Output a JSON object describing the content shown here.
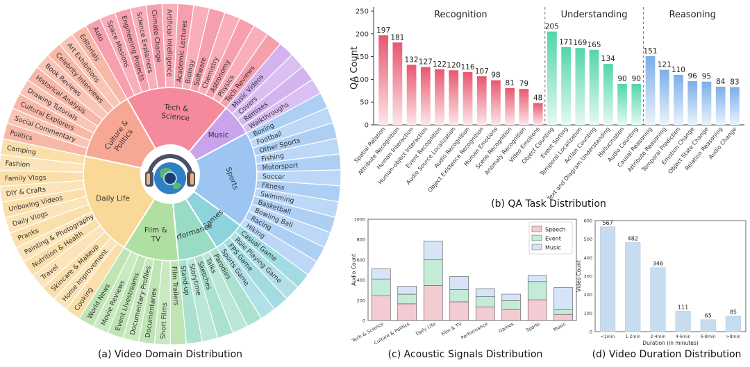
{
  "captions": {
    "a": "(a) Video Domain Distribution",
    "b": "(b) QA Task Distribution",
    "c": "(c) Acoustic Signals Distribution",
    "d": "(d) Video Duration Distribution"
  },
  "chart_data": [
    {
      "type": "sunburst",
      "title": "(a) Video Domain Distribution",
      "categories": [
        {
          "name": "Culture & Politics",
          "color": "#f7a894",
          "leaves": [
            "Politics",
            "Social Commentary",
            "Cultural Explorers",
            "Drawing Tutorials",
            "Historical Analysis",
            "Book Reviews",
            "Celebrity Interviews",
            "Art Exhibitions",
            "Editorials"
          ]
        },
        {
          "name": "Tech & Science",
          "color": "#f48a9b",
          "leaves": [
            "Auto",
            "Space Missions",
            "Engineering Projects",
            "Science Explainers",
            "Climate Change",
            "Artificial Intelligence",
            "Academic Lectures",
            "Biology",
            "Software",
            "Chemistry",
            "Astronomy",
            "Physics",
            "Tech Reviews"
          ]
        },
        {
          "name": "Music",
          "color": "#c9a3ec",
          "leaves": [
            "Music Videos",
            "Covers",
            "Remixes",
            "Walkthroughs"
          ]
        },
        {
          "name": "Sports",
          "color": "#9cc5f2",
          "leaves": [
            "Boxing",
            "Football",
            "Other Sports",
            "Fishing",
            "Motorsport",
            "Soccer",
            "Fitness",
            "Swimming",
            "Basketball",
            "Bowling Ball",
            "Racing",
            "Hiking"
          ]
        },
        {
          "name": "Games",
          "color": "#8dd3dc",
          "leaves": [
            "Casual Game",
            "Role Playing Game",
            "FPS Game",
            "Sports Game"
          ]
        },
        {
          "name": "Performance",
          "color": "#99dbc4",
          "leaves": [
            "Parodies",
            "Talks",
            "Sketches",
            "Storytime",
            "Stand-up"
          ]
        },
        {
          "name": "Film & TV",
          "color": "#b0dfa2",
          "leaves": [
            "Film Trailers",
            "Short Films",
            "Documentaries",
            "Documentary Profiles",
            "Event Livestreams",
            "Movie Reviews",
            "World News"
          ]
        },
        {
          "name": "Daily Life",
          "color": "#f9d898",
          "leaves": [
            "Cooking",
            "Home Improvement",
            "Skincare & Makeup",
            "Travel",
            "Nutrition & Health",
            "Painting & Photography",
            "Pranks",
            "Daily Vlogs",
            "Unboxing Videos",
            "DIY & Crafts",
            "Family Vlogs",
            "Fashion",
            "Camping"
          ]
        }
      ]
    },
    {
      "type": "bar",
      "title": "(b) QA Task Distribution",
      "ylabel": "QA Count",
      "ylim": [
        0,
        250
      ],
      "yticks": [
        0,
        50,
        100,
        150,
        200,
        250
      ],
      "groups": [
        {
          "name": "Recognition",
          "color": "#e8576f",
          "categories": [
            "Spatial Relation",
            "Attribute Recognition",
            "Human Interaction",
            "Human-object Interaction",
            "Event Recognition",
            "Audio Source Localization",
            "Audio Recognition",
            "Object Existence Recognition",
            "Human Emotions",
            "Scene Recognition",
            "Anomaly Recognition",
            "Video Emotions"
          ],
          "values": [
            197,
            181,
            132,
            127,
            122,
            120,
            116,
            107,
            98,
            81,
            79,
            48
          ]
        },
        {
          "name": "Understanding",
          "color": "#52d6a8",
          "categories": [
            "Object Counting",
            "Event Sorting",
            "Temporal Localization",
            "Action Counting",
            "Text and Diagram Understanding",
            "Hallucination",
            "Audio Counting"
          ],
          "values": [
            205,
            171,
            169,
            165,
            134,
            90,
            90
          ]
        },
        {
          "name": "Reasoning",
          "color": "#7aaee8",
          "categories": [
            "Causal Reasoning",
            "Attribute Reasoning",
            "Temporal Prediction",
            "Emotion Change",
            "Object State Change",
            "Relation Reasoning",
            "Audio Change"
          ],
          "values": [
            151,
            121,
            110,
            96,
            95,
            84,
            83
          ]
        }
      ]
    },
    {
      "type": "stacked-bar",
      "title": "(c) Acoustic Signals Distribution",
      "ylabel": "Audio Count",
      "ylim": [
        0,
        1000
      ],
      "yticks": [
        0,
        200,
        400,
        600,
        800,
        1000
      ],
      "legend": "top-right",
      "categories": [
        "Tech & Science",
        "Culture & Politics",
        "Daily Life",
        "Film & TV",
        "Performance",
        "Games",
        "Sports",
        "Music"
      ],
      "series": [
        {
          "name": "Speech",
          "color": "#f3ccd3",
          "values": [
            245,
            165,
            345,
            185,
            135,
            105,
            205,
            60
          ]
        },
        {
          "name": "Event",
          "color": "#c4ead8",
          "values": [
            165,
            95,
            255,
            120,
            100,
            90,
            180,
            45
          ]
        },
        {
          "name": "Music",
          "color": "#d6e4f7",
          "values": [
            100,
            80,
            185,
            130,
            80,
            65,
            60,
            220
          ]
        }
      ]
    },
    {
      "type": "bar",
      "title": "(d) Video Duration Distribution",
      "xlabel": "Duration (in minutes)",
      "ylabel": "Video Count",
      "ylim": [
        0,
        600
      ],
      "yticks": [
        0,
        100,
        200,
        300,
        400,
        500,
        600
      ],
      "color": "#c7dcef",
      "categories": [
        "<1min",
        "1-2min",
        "2-4min",
        "4-6min",
        "6-8min",
        ">8min"
      ],
      "values": [
        567,
        482,
        346,
        111,
        65,
        85
      ]
    }
  ]
}
